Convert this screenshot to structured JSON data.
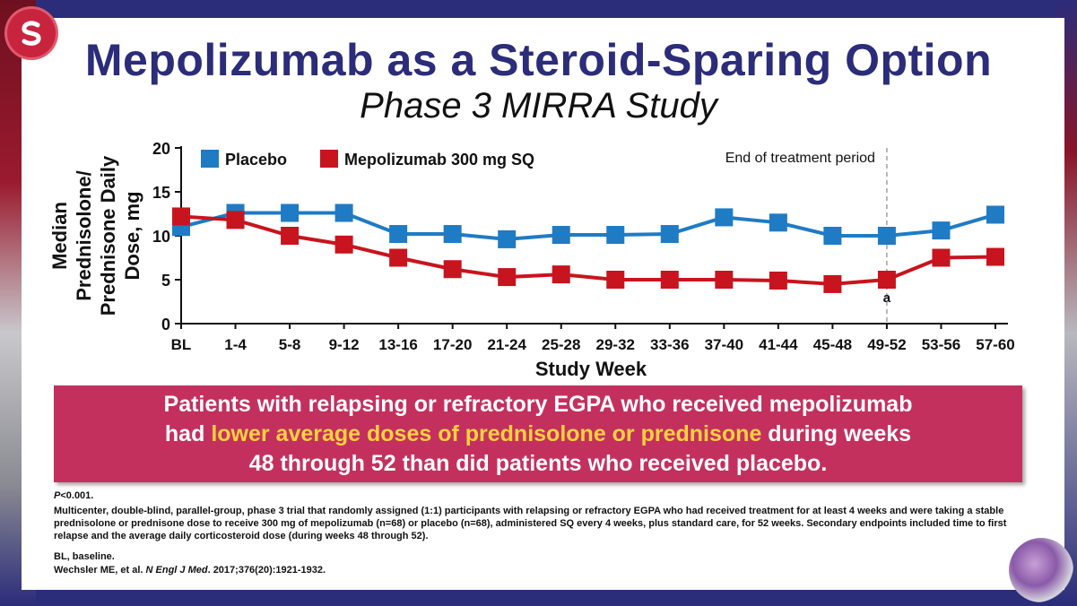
{
  "slide": {
    "title": "Mepolizumab as a Steroid-Sparing Option",
    "subtitle": "Phase 3 MIRRA Study"
  },
  "callout": {
    "part1": "Patients with relapsing or refractory EGPA who received mepolizumab",
    "part2_pre": "had ",
    "part2_highlight": "lower average doses of prednisolone or prednisone",
    "part2_post": " during weeks",
    "part3": "48 through 52 than did patients who received placebo."
  },
  "footnotes": {
    "p_italic": "P",
    "p_rest": "<0.001.",
    "description": "Multicenter, double-blind, parallel-group, phase 3 trial that randomly assigned (1:1) participants with relapsing or refractory EGPA who had received treatment for at least 4 weeks and were taking a stable prednisolone or prednisone dose to receive 300 mg of mepolizumab (n=68) or placebo (n=68), administered SQ every 4 weeks, plus standard care, for 52 weeks. Secondary endpoints included time to first relapse and the average daily corticosteroid dose (during weeks 48 through 52).",
    "abbrev": "BL, baseline.",
    "ref_pre": "Wechsler ME, et al. ",
    "ref_journal": "N Engl J Med",
    "ref_post": ". 2017;376(20):1921-1932."
  },
  "colors": {
    "placebo": "#1f7bc4",
    "mepolizumab": "#c8141e",
    "title": "#2b2c7a",
    "callout_bg": "#c4305e",
    "highlight": "#ffd23e"
  },
  "chart_data": {
    "type": "line",
    "xlabel": "Study Week",
    "ylabel_lines": [
      "Median",
      "Prednisolone/",
      "Prednisone Daily",
      "Dose, mg"
    ],
    "categories": [
      "BL",
      "1-4",
      "5-8",
      "9-12",
      "13-16",
      "17-20",
      "21-24",
      "25-28",
      "29-32",
      "33-36",
      "37-40",
      "41-44",
      "45-48",
      "49-52",
      "53-56",
      "57-60"
    ],
    "ylim": [
      0,
      20
    ],
    "yticks": [
      0,
      5,
      10,
      15,
      20
    ],
    "series": [
      {
        "name": "Placebo",
        "color": "#1f7bc4",
        "values": [
          11.0,
          12.6,
          12.6,
          12.6,
          10.2,
          10.2,
          9.6,
          10.1,
          10.1,
          10.2,
          12.1,
          11.5,
          10.0,
          10.0,
          10.6,
          12.4
        ]
      },
      {
        "name": "Mepolizumab 300 mg SQ",
        "color": "#c8141e",
        "values": [
          12.2,
          11.8,
          10.0,
          9.0,
          7.5,
          6.2,
          5.3,
          5.6,
          5.0,
          5.0,
          5.0,
          4.9,
          4.5,
          5.0,
          7.5,
          7.6
        ]
      }
    ],
    "annotations": [
      {
        "text": "End of treatment period",
        "at_category": "49-52",
        "kind": "vertical-line"
      },
      {
        "text": "a",
        "at_category": "49-52",
        "kind": "label"
      }
    ]
  }
}
